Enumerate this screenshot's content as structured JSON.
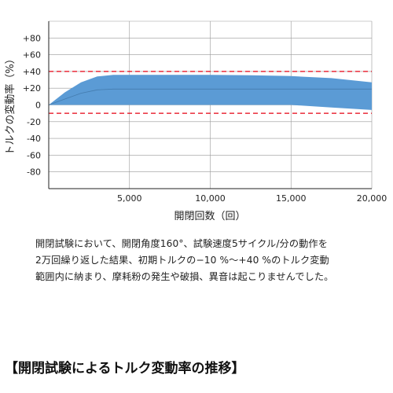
{
  "chart_data": {
    "type": "area",
    "xlabel": "開閉回数（回）",
    "ylabel": "トルクの変動率（%）",
    "xlim": [
      0,
      20000
    ],
    "ylim": [
      -100,
      100
    ],
    "x_ticks": [
      5000,
      10000,
      15000,
      20000
    ],
    "x_tick_labels": [
      "5,000",
      "10,000",
      "15,000",
      "20,000"
    ],
    "y_ticks": [
      80,
      60,
      40,
      20,
      0,
      -20,
      -40,
      -60,
      -80
    ],
    "y_tick_labels": [
      "+80",
      "+60",
      "+40",
      "+20",
      "0",
      "-20",
      "-40",
      "-60",
      "-80"
    ],
    "grid": true,
    "band": {
      "x": [
        0,
        1000,
        2000,
        3000,
        4000,
        5000,
        7500,
        10000,
        12500,
        15000,
        17500,
        20000
      ],
      "upper": [
        0,
        15,
        27,
        34,
        36,
        36,
        36,
        36,
        35.5,
        34.5,
        32,
        27
      ],
      "lower": [
        0,
        0,
        0,
        0,
        0,
        0,
        0,
        0,
        0,
        0,
        -3,
        -6
      ]
    },
    "center_line": {
      "x": [
        0,
        1000,
        2000,
        3000,
        4000,
        5000,
        10000,
        15000,
        20000
      ],
      "y": [
        0,
        7,
        14,
        18,
        19,
        19,
        19,
        19,
        19
      ]
    },
    "limit_lines": [
      40,
      -10
    ],
    "colors": {
      "band": "#5b9bd5",
      "limit": "#e60012",
      "grid": "#999999"
    }
  },
  "description": {
    "lines": [
      "開閉試験において、開閉角度160°、試験速度5サイクル/分の動作を",
      "2万回繰り返した結果、初期トルクの−10 %〜+40 %のトルク変動",
      "範囲内に納まり、摩耗粉の発生や破損、異音は起こりませんでした。"
    ]
  },
  "section_title": "【開閉試験によるトルク変動率の推移】"
}
